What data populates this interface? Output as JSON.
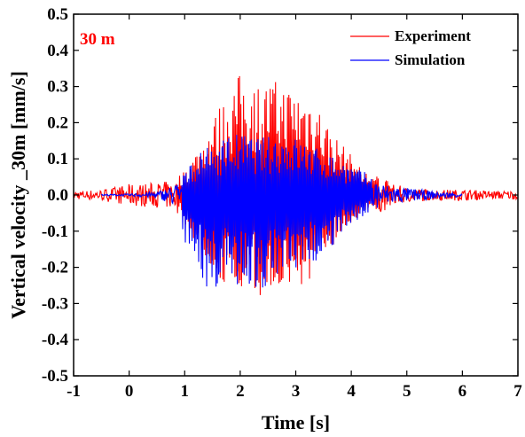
{
  "chart_data": {
    "type": "line",
    "title": "",
    "annotation": "30 m",
    "xlabel": "Time [s]",
    "ylabel": "Vertical velocity _30m [mm/s]",
    "xlim": [
      -1,
      7
    ],
    "ylim": [
      -0.5,
      0.5
    ],
    "xticks": [
      "-1",
      "0",
      "1",
      "2",
      "3",
      "4",
      "5",
      "6",
      "7"
    ],
    "yticks": [
      "-0.5",
      "-0.4",
      "-0.3",
      "-0.2",
      "-0.1",
      "0.0",
      "0.1",
      "0.2",
      "0.3",
      "0.4",
      "0.5"
    ],
    "legend_position": "top-right",
    "grid": false,
    "series": [
      {
        "name": "Experiment",
        "color": "#ff0000",
        "envelope": {
          "t": [
            -1.0,
            -0.5,
            0.0,
            0.5,
            0.8,
            1.0,
            1.3,
            1.6,
            2.0,
            2.3,
            2.6,
            3.0,
            3.3,
            3.6,
            3.9,
            4.2,
            4.5,
            4.8,
            5.0,
            5.5,
            6.0,
            6.5,
            7.0
          ],
          "upper": [
            0.012,
            0.015,
            0.03,
            0.035,
            0.04,
            0.07,
            0.15,
            0.24,
            0.34,
            0.31,
            0.32,
            0.3,
            0.29,
            0.19,
            0.13,
            0.07,
            0.05,
            0.03,
            0.02,
            0.015,
            0.015,
            0.012,
            0.012
          ],
          "lower": [
            -0.012,
            -0.015,
            -0.03,
            -0.03,
            -0.04,
            -0.08,
            -0.16,
            -0.23,
            -0.29,
            -0.28,
            -0.27,
            -0.26,
            -0.25,
            -0.15,
            -0.1,
            -0.05,
            -0.04,
            -0.03,
            -0.02,
            -0.015,
            -0.015,
            -0.012,
            -0.012
          ]
        }
      },
      {
        "name": "Simulation",
        "color": "#0000ff",
        "envelope": {
          "t": [
            -0.5,
            0.0,
            0.5,
            0.7,
            0.9,
            1.0,
            1.2,
            1.5,
            1.8,
            2.0,
            2.4,
            2.8,
            3.0,
            3.4,
            3.8,
            4.0,
            4.3,
            4.6,
            5.0,
            5.5,
            6.0
          ],
          "upper": [
            0.002,
            0.003,
            0.01,
            0.02,
            0.04,
            0.06,
            0.11,
            0.14,
            0.17,
            0.17,
            0.16,
            0.17,
            0.16,
            0.13,
            0.1,
            0.08,
            0.06,
            0.03,
            0.02,
            0.01,
            0.005
          ],
          "lower": [
            -0.002,
            -0.003,
            -0.01,
            -0.02,
            -0.05,
            -0.13,
            -0.22,
            -0.27,
            -0.25,
            -0.25,
            -0.26,
            -0.24,
            -0.24,
            -0.18,
            -0.12,
            -0.08,
            -0.05,
            -0.03,
            -0.02,
            -0.01,
            -0.005
          ]
        }
      }
    ]
  }
}
